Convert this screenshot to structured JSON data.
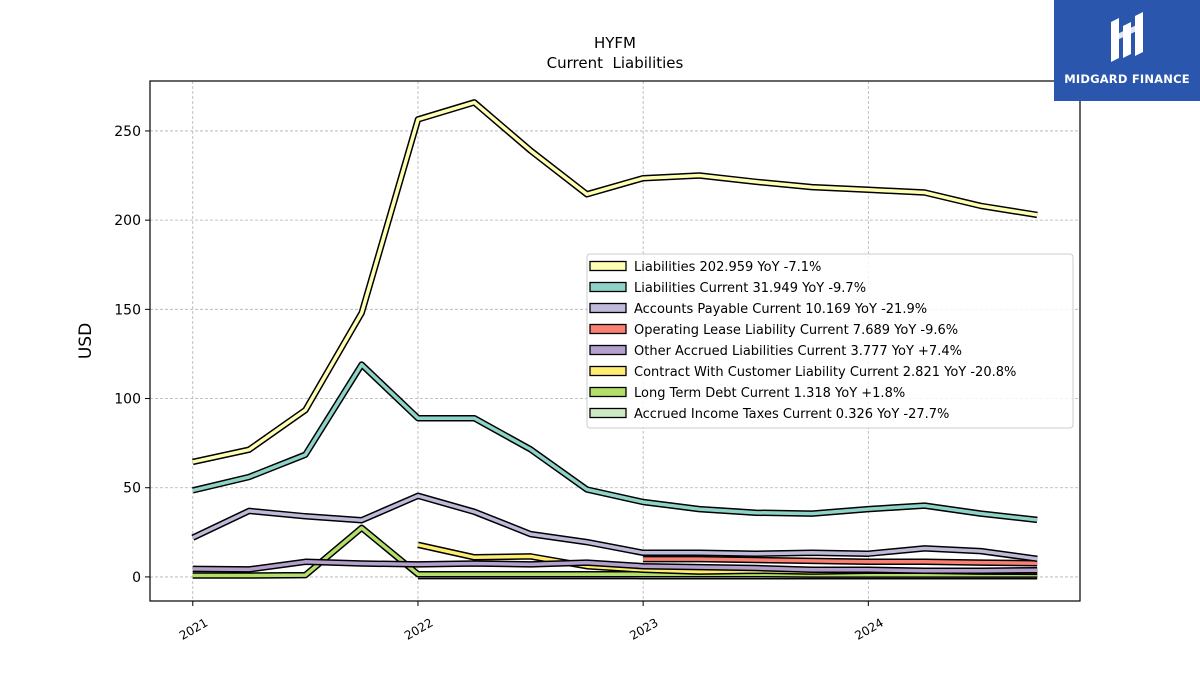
{
  "logo": {
    "text": "MIDGARD FINANCE",
    "icon": "midgard-monogram-icon",
    "background": "#2a56ad"
  },
  "chart_data": {
    "type": "line",
    "title": "HYFM",
    "subtitle": "Current  Liabilities",
    "xlabel": "",
    "ylabel": "USD",
    "xlim": [
      2020.81,
      2024.94
    ],
    "ylim": [
      -13.5,
      278
    ],
    "x_ticks": [
      2021,
      2022,
      2023,
      2024
    ],
    "x_tick_labels": [
      "2021",
      "2022",
      "2023",
      "2024"
    ],
    "y_ticks": [
      0,
      50,
      100,
      150,
      200,
      250
    ],
    "y_tick_labels": [
      "0",
      "50",
      "100",
      "150",
      "200",
      "250"
    ],
    "grid": true,
    "legend_position": "center-right",
    "x": [
      2021.0,
      2021.25,
      2021.5,
      2021.75,
      2022.0,
      2022.25,
      2022.5,
      2022.75,
      2023.0,
      2023.25,
      2023.5,
      2023.75,
      2024.0,
      2024.25,
      2024.5,
      2024.75
    ],
    "series": [
      {
        "name": "Liabilities",
        "legend": "Liabilities  202.959 YoY -7.1%",
        "color": "#ffffb3",
        "values": [
          64.5,
          71.3,
          93.5,
          148.0,
          256.5,
          266.0,
          239.0,
          214.5,
          223.5,
          225.0,
          221.5,
          218.5,
          217.0,
          215.5,
          208.0,
          202.96
        ]
      },
      {
        "name": "Liabilities Current",
        "legend": "Liabilities Current  31.949 YoY -9.7%",
        "color": "#8dd3c7",
        "values": [
          48.5,
          56.0,
          68.5,
          119.0,
          89.0,
          89.0,
          71.5,
          49.0,
          42.0,
          38.0,
          36.0,
          35.5,
          38.0,
          40.0,
          35.5,
          31.95
        ]
      },
      {
        "name": "Accounts Payable Current",
        "legend": "Accounts Payable Current  10.169 YoY -21.9%",
        "color": "#bebada",
        "values": [
          22.0,
          37.0,
          34.0,
          31.8,
          45.5,
          36.5,
          24.0,
          19.5,
          13.5,
          13.5,
          13.0,
          13.5,
          13.0,
          16.0,
          14.5,
          10.17
        ]
      },
      {
        "name": "Operating Lease Liability Current",
        "legend": "Operating Lease Liability Current  7.689 YoY -9.6%",
        "color": "#fb8072",
        "values": [
          null,
          null,
          null,
          null,
          null,
          null,
          null,
          null,
          10.0,
          10.0,
          9.5,
          9.0,
          8.5,
          8.5,
          8.0,
          7.69
        ]
      },
      {
        "name": "Other Accrued Liabilities Current",
        "legend": "Other Accrued Liabilities Current  3.777 YoY +7.4%",
        "color": "#b3a0cc",
        "values": [
          4.5,
          4.2,
          8.5,
          7.5,
          7.0,
          7.5,
          7.0,
          8.0,
          6.0,
          5.5,
          5.0,
          4.0,
          4.0,
          3.5,
          3.5,
          3.78
        ]
      },
      {
        "name": "Contract With Customer Liability Current",
        "legend": "Contract With Customer Liability Current  2.821 YoY -20.8%",
        "color": "#ffed6f",
        "values": [
          null,
          null,
          null,
          null,
          18.0,
          11.0,
          11.5,
          6.0,
          4.0,
          3.0,
          3.5,
          3.0,
          3.5,
          3.5,
          3.0,
          2.82
        ]
      },
      {
        "name": "Long Term Debt Current",
        "legend": "Long Term Debt Current  1.318 YoY +1.8%",
        "color": "#b3de69",
        "values": [
          0.8,
          0.8,
          1.0,
          27.5,
          1.5,
          1.5,
          1.5,
          1.5,
          1.5,
          1.5,
          1.5,
          1.3,
          1.3,
          1.3,
          1.3,
          1.32
        ]
      },
      {
        "name": "Accrued Income Taxes Current",
        "legend": "Accrued Income Taxes Current  0.326 YoY -27.7%",
        "color": "#ccebc5",
        "values": [
          null,
          null,
          null,
          null,
          0.45,
          0.45,
          0.45,
          0.45,
          0.4,
          0.4,
          0.4,
          0.4,
          0.4,
          0.35,
          0.35,
          0.33
        ]
      }
    ]
  }
}
